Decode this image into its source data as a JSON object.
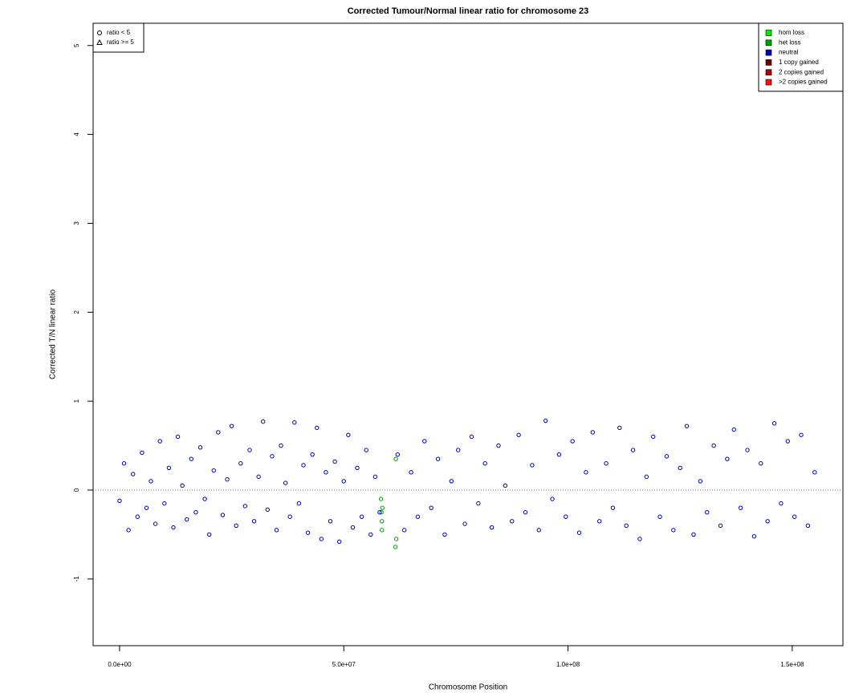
{
  "chart_data": {
    "type": "scatter",
    "title": "Corrected Tumour/Normal linear ratio for chromosome  23",
    "xlabel": "Chromosome Position",
    "ylabel": "Corrected T/N linear ratio",
    "xlim": [
      -5900000.0,
      161300000.0
    ],
    "ylim": [
      -1.75,
      5.25
    ],
    "xticks": [
      {
        "value": 0,
        "label": "0.0e+00"
      },
      {
        "value": 50000000.0,
        "label": "5.0e+07"
      },
      {
        "value": 100000000.0,
        "label": "1.0e+08"
      },
      {
        "value": 150000000.0,
        "label": "1.5e+08"
      }
    ],
    "yticks": [
      -1,
      0,
      1,
      2,
      3,
      4,
      5
    ],
    "hline": 0,
    "shape_legend": [
      "ratio < 5",
      "ratio >= 5"
    ],
    "legend": "top-right",
    "series": [
      {
        "name": "hom loss",
        "color": "#00ee00",
        "x": [],
        "values": []
      },
      {
        "name": "het loss",
        "color": "#00a000",
        "x": [
          58300000.0,
          58400000.0,
          58500000.0,
          58500000.0,
          58600000.0,
          61500000.0,
          61600000.0,
          61700000.0
        ],
        "values": [
          -0.1,
          -0.25,
          -0.35,
          -0.45,
          -0.2,
          -0.64,
          0.35,
          -0.55
        ]
      },
      {
        "name": "neutral",
        "color": "#0000b4",
        "x": [
          0,
          1000000.0,
          2000000.0,
          3000000.0,
          4000000.0,
          5000000.0,
          6000000.0,
          7000000.0,
          8000000.0,
          9000000.0,
          10000000.0,
          11000000.0,
          12000000.0,
          13000000.0,
          14000000.0,
          15000000.0,
          16000000.0,
          17000000.0,
          18000000.0,
          19000000.0,
          20000000.0,
          21000000.0,
          22000000.0,
          23000000.0,
          24000000.0,
          25000000.0,
          26000000.0,
          27000000.0,
          28000000.0,
          29000000.0,
          30000000.0,
          31000000.0,
          32000000.0,
          33000000.0,
          34000000.0,
          35000000.0,
          36000000.0,
          37000000.0,
          38000000.0,
          39000000.0,
          40000000.0,
          41000000.0,
          42000000.0,
          43000000.0,
          44000000.0,
          45000000.0,
          46000000.0,
          47000000.0,
          48000000.0,
          49000000.0,
          50000000.0,
          51000000.0,
          52000000.0,
          53000000.0,
          54000000.0,
          55000000.0,
          56000000.0,
          57000000.0,
          58000000.0,
          62000000.0,
          63500000.0,
          65000000.0,
          66500000.0,
          68000000.0,
          69500000.0,
          71000000.0,
          72500000.0,
          74000000.0,
          75500000.0,
          77000000.0,
          78500000.0,
          80000000.0,
          81500000.0,
          83000000.0,
          84500000.0,
          86000000.0,
          87500000.0,
          89000000.0,
          90500000.0,
          92000000.0,
          93500000.0,
          95000000.0,
          96500000.0,
          98000000.0,
          99500000.0,
          101000000.0,
          102500000.0,
          104000000.0,
          105500000.0,
          107000000.0,
          108500000.0,
          110000000.0,
          111500000.0,
          113000000.0,
          114500000.0,
          116000000.0,
          117500000.0,
          119000000.0,
          120500000.0,
          122000000.0,
          123500000.0,
          125000000.0,
          126500000.0,
          128000000.0,
          129500000.0,
          131000000.0,
          132500000.0,
          134000000.0,
          135500000.0,
          137000000.0,
          138500000.0,
          140000000.0,
          141500000.0,
          143000000.0,
          144500000.0,
          146000000.0,
          147500000.0,
          149000000.0,
          150500000.0,
          152000000.0,
          153500000.0,
          155000000.0
        ],
        "values": [
          -0.12,
          0.3,
          -0.45,
          0.18,
          -0.3,
          0.42,
          -0.2,
          0.1,
          -0.38,
          0.55,
          -0.15,
          0.25,
          -0.42,
          0.6,
          0.05,
          -0.33,
          0.35,
          -0.25,
          0.48,
          -0.1,
          -0.5,
          0.22,
          0.65,
          -0.28,
          0.12,
          0.72,
          -0.4,
          0.3,
          -0.18,
          0.45,
          -0.35,
          0.15,
          0.77,
          -0.22,
          0.38,
          -0.45,
          0.5,
          0.08,
          -0.3,
          0.76,
          -0.15,
          0.28,
          -0.48,
          0.4,
          0.7,
          -0.55,
          0.2,
          -0.35,
          0.32,
          -0.58,
          0.1,
          0.62,
          -0.42,
          0.25,
          -0.3,
          0.45,
          -0.5,
          0.15,
          -0.25,
          0.4,
          -0.45,
          0.2,
          -0.3,
          0.55,
          -0.2,
          0.35,
          -0.5,
          0.1,
          0.45,
          -0.38,
          0.6,
          -0.15,
          0.3,
          -0.42,
          0.5,
          0.05,
          -0.35,
          0.62,
          -0.25,
          0.28,
          -0.45,
          0.78,
          -0.1,
          0.4,
          -0.3,
          0.55,
          -0.48,
          0.2,
          0.65,
          -0.35,
          0.3,
          -0.2,
          0.7,
          -0.4,
          0.45,
          -0.55,
          0.15,
          0.6,
          -0.3,
          0.38,
          -0.45,
          0.25,
          0.72,
          -0.5,
          0.1,
          -0.25,
          0.5,
          -0.4,
          0.35,
          0.68,
          -0.2,
          0.45,
          -0.52,
          0.3,
          -0.35,
          0.75,
          -0.15,
          0.55,
          -0.3,
          0.62,
          -0.4,
          0.2
        ]
      },
      {
        "name": "1 copy gained",
        "color": "#6b0000",
        "x": [],
        "values": []
      },
      {
        "name": "2 copies gained",
        "color": "#b00000",
        "x": [],
        "values": []
      },
      {
        "name": ">2 copies gained",
        "color": "#ff1010",
        "x": [],
        "values": []
      }
    ]
  }
}
